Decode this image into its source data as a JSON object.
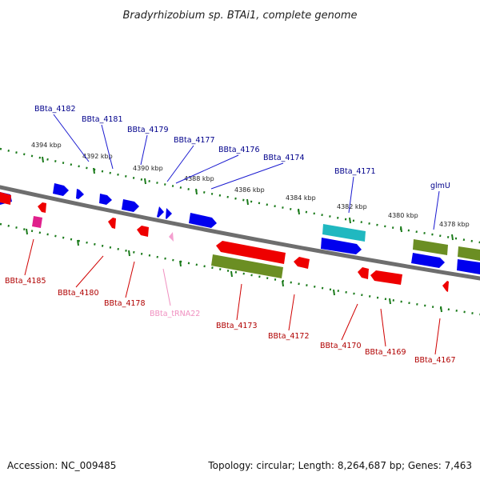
{
  "title": "Bradyrhizobium sp. BTAi1, complete genome",
  "footer": {
    "accession": "Accession: NC_009485",
    "topology": "Topology: circular; Length: 8,264,687 bp; Genes: 7,463"
  },
  "scale_labels": [
    "4394 kbp",
    "4392 kbp",
    "4390 kbp",
    "4388 kbp",
    "4386 kbp",
    "4384 kbp",
    "4382 kbp",
    "4380 kbp",
    "4378 kbp"
  ],
  "colors": {
    "forward_gene": "#0000ee",
    "reverse_gene": "#ee0000",
    "trna": "#f4a0d0",
    "pseudo": "#e0208c",
    "cog": "#6b8e23",
    "highlight": "#20b8c0",
    "backbone": "#777777",
    "ticks": "#1a7a1a",
    "forward_label": "#00008b",
    "reverse_label": "#b00000",
    "trna_label": "#f090c0"
  },
  "labels": {
    "forward": [
      "BBta_4182",
      "BBta_4181",
      "BBta_4179",
      "BBta_4177",
      "BBta_4176",
      "BBta_4174",
      "BBta_4171",
      "glmU"
    ],
    "reverse": [
      "BBta_4185",
      "BBta_4180",
      "BBta_4178",
      "BBta_tRNA22",
      "BBta_4173",
      "BBta_4172",
      "BBta_4170",
      "BBta_4169",
      "BBta_4167"
    ]
  }
}
